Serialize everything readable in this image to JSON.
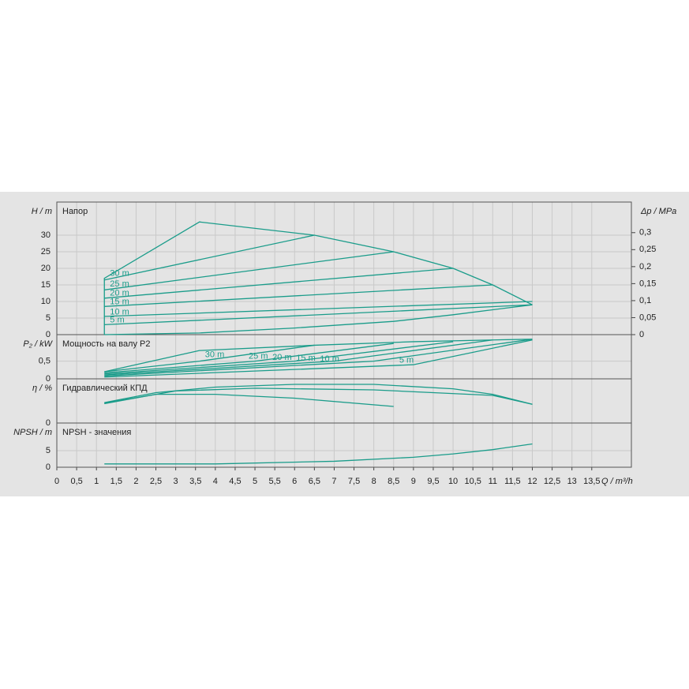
{
  "chart_data": [
    {
      "type": "line",
      "title": "Напор",
      "ylabel": "H / m",
      "y2label": "Δp / MPa",
      "color": "#1a9c8a",
      "ylim": [
        0,
        40
      ],
      "yticks": [
        0,
        5,
        10,
        15,
        20,
        25,
        30
      ],
      "y2lim": [
        0,
        0.39
      ],
      "y2ticks": [
        0,
        {
          "value": 0.05,
          "label": "0,05"
        },
        {
          "value": 0.1,
          "label": "0,1"
        },
        {
          "value": 0.15,
          "label": "0,15"
        },
        {
          "value": 0.2,
          "label": "0,2"
        },
        {
          "value": 0.25,
          "label": "0,25"
        },
        {
          "value": 0.3,
          "label": "0,3"
        }
      ],
      "series": [
        {
          "x": [
            1.2,
            1.2,
            3.6,
            6.5,
            8.5,
            10,
            11,
            12
          ],
          "values": [
            0,
            17,
            34,
            30,
            25,
            20,
            15,
            9
          ]
        },
        {
          "x": [
            1.2,
            3.6,
            6,
            8.5,
            10,
            12
          ],
          "values": [
            0,
            0.5,
            2,
            4,
            6,
            9
          ]
        },
        {
          "name": "30 m",
          "x": [
            1.2,
            6.5
          ],
          "values": [
            16.5,
            30
          ]
        },
        {
          "name": "25 m",
          "x": [
            1.2,
            8.5
          ],
          "values": [
            13.5,
            25
          ]
        },
        {
          "name": "20 m",
          "x": [
            1.2,
            10
          ],
          "values": [
            11,
            20
          ]
        },
        {
          "name": "15 m",
          "x": [
            1.2,
            11
          ],
          "values": [
            8.5,
            15
          ]
        },
        {
          "name": "10 m",
          "x": [
            1.2,
            12
          ],
          "values": [
            5.5,
            10
          ]
        },
        {
          "name": "5 m",
          "x": [
            1.2,
            12
          ],
          "values": [
            3,
            9
          ]
        }
      ]
    },
    {
      "type": "line",
      "title": "Мощность на валу P2",
      "ylabel": "P₂ / kW",
      "color": "#1a9c8a",
      "ylim": [
        0,
        1.25
      ],
      "yticks": [
        0,
        {
          "value": 0.5,
          "label": "0,5"
        }
      ],
      "series": [
        {
          "x": [
            1.2,
            3.6,
            6.5,
            9,
            11,
            12
          ],
          "values": [
            0.2,
            0.8,
            0.95,
            1.05,
            1.1,
            1.12
          ]
        },
        {
          "name": "30 m",
          "x": [
            1.2,
            3.6,
            6.5
          ],
          "values": [
            0.2,
            0.5,
            0.95
          ]
        },
        {
          "name": "25 m",
          "x": [
            1.2,
            5,
            8.5
          ],
          "values": [
            0.17,
            0.5,
            1.0
          ]
        },
        {
          "name": "20 m",
          "x": [
            1.2,
            6,
            10
          ],
          "values": [
            0.14,
            0.5,
            1.05
          ]
        },
        {
          "name": "15 m",
          "x": [
            1.2,
            7,
            11
          ],
          "values": [
            0.11,
            0.5,
            1.1
          ]
        },
        {
          "name": "10 m",
          "x": [
            1.2,
            8,
            12
          ],
          "values": [
            0.08,
            0.5,
            1.12
          ]
        },
        {
          "name": "5 m",
          "x": [
            1.2,
            9,
            12
          ],
          "values": [
            0.05,
            0.4,
            1.1
          ]
        }
      ]
    },
    {
      "type": "line",
      "title": "Гидравлический КПД",
      "ylabel": "η / %",
      "color": "#1a9c8a",
      "ylim": [
        0,
        80
      ],
      "yticks": [
        0
      ],
      "series": [
        {
          "x": [
            1.2,
            2.5,
            4,
            6,
            8,
            10,
            11,
            12
          ],
          "values": [
            37,
            55,
            65,
            70,
            70,
            62,
            52,
            34
          ]
        },
        {
          "x": [
            1.2,
            3,
            5,
            8,
            11,
            12
          ],
          "values": [
            36,
            58,
            63,
            60,
            50,
            34
          ]
        },
        {
          "x": [
            1.2,
            2.5,
            4,
            6,
            8.5
          ],
          "values": [
            35,
            52,
            52,
            45,
            30
          ]
        }
      ]
    },
    {
      "type": "line",
      "title": "NPSH - значения",
      "ylabel": "NPSH / m",
      "color": "#1a9c8a",
      "ylim": [
        0,
        13.3
      ],
      "yticks": [
        0,
        5
      ],
      "xlabel": "Q / m³/h",
      "xlim": [
        0,
        14.5
      ],
      "xticks": [
        0,
        {
          "value": 0.5,
          "label": "0,5"
        },
        1,
        {
          "value": 1.5,
          "label": "1,5"
        },
        2,
        {
          "value": 2.5,
          "label": "2,5"
        },
        3,
        {
          "value": 3.5,
          "label": "3,5"
        },
        4,
        {
          "value": 4.5,
          "label": "4,5"
        },
        5,
        {
          "value": 5.5,
          "label": "5,5"
        },
        6,
        {
          "value": 6.5,
          "label": "6,5"
        },
        7,
        {
          "value": 7.5,
          "label": "7,5"
        },
        8,
        {
          "value": 8.5,
          "label": "8,5"
        },
        9,
        {
          "value": 9.5,
          "label": "9,5"
        },
        10,
        {
          "value": 10.5,
          "label": "10,5"
        },
        11,
        {
          "value": 11.5,
          "label": "11,5"
        },
        12,
        {
          "value": 12.5,
          "label": "12,5"
        },
        13,
        {
          "value": 13.5,
          "label": "13,5"
        }
      ],
      "series": [
        {
          "x": [
            1.2,
            4,
            7,
            9,
            10,
            11,
            12
          ],
          "values": [
            1,
            1,
            1.8,
            3,
            4,
            5.3,
            7
          ]
        }
      ]
    }
  ]
}
